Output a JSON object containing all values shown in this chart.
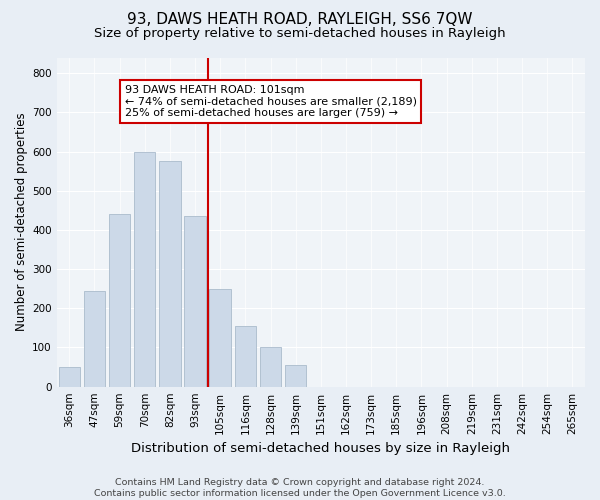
{
  "title": "93, DAWS HEATH ROAD, RAYLEIGH, SS6 7QW",
  "subtitle": "Size of property relative to semi-detached houses in Rayleigh",
  "xlabel": "Distribution of semi-detached houses by size in Rayleigh",
  "ylabel": "Number of semi-detached properties",
  "bar_labels": [
    "36sqm",
    "47sqm",
    "59sqm",
    "70sqm",
    "82sqm",
    "93sqm",
    "105sqm",
    "116sqm",
    "128sqm",
    "139sqm",
    "151sqm",
    "162sqm",
    "173sqm",
    "185sqm",
    "196sqm",
    "208sqm",
    "219sqm",
    "231sqm",
    "242sqm",
    "254sqm",
    "265sqm"
  ],
  "bar_values": [
    50,
    245,
    440,
    600,
    575,
    435,
    250,
    155,
    100,
    55,
    0,
    0,
    0,
    0,
    0,
    0,
    0,
    0,
    0,
    0,
    0
  ],
  "bar_color": "#ccd9e8",
  "bar_edge_color": "#aabbcc",
  "vline_color": "#cc0000",
  "annotation_text": "93 DAWS HEATH ROAD: 101sqm\n← 74% of semi-detached houses are smaller (2,189)\n25% of semi-detached houses are larger (759) →",
  "annotation_box_color": "#ffffff",
  "annotation_box_edge": "#cc0000",
  "ylim": [
    0,
    840
  ],
  "yticks": [
    0,
    100,
    200,
    300,
    400,
    500,
    600,
    700,
    800
  ],
  "footnote": "Contains HM Land Registry data © Crown copyright and database right 2024.\nContains public sector information licensed under the Open Government Licence v3.0.",
  "bg_color": "#e8eef5",
  "plot_bg_color": "#f0f4f8",
  "title_fontsize": 11,
  "subtitle_fontsize": 9.5,
  "xlabel_fontsize": 9.5,
  "ylabel_fontsize": 8.5,
  "tick_fontsize": 7.5,
  "footnote_fontsize": 6.8,
  "annotation_fontsize": 8
}
